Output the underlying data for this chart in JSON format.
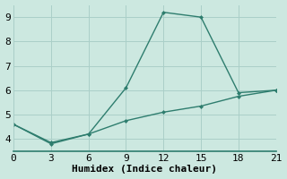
{
  "line1_x": [
    0,
    3,
    6,
    9,
    12,
    15,
    18,
    21
  ],
  "line1_y": [
    4.6,
    3.8,
    4.2,
    6.1,
    9.2,
    9.0,
    5.9,
    6.0
  ],
  "line2_x": [
    0,
    3,
    6,
    9,
    12,
    15,
    18,
    21
  ],
  "line2_y": [
    4.6,
    3.85,
    4.2,
    4.75,
    5.1,
    5.35,
    5.75,
    6.0
  ],
  "line_color": "#2e7d6e",
  "marker": "D",
  "marker_size": 2.5,
  "xlabel": "Humidex (Indice chaleur)",
  "xlim": [
    0,
    21
  ],
  "ylim": [
    3.5,
    9.5
  ],
  "xticks": [
    0,
    3,
    6,
    9,
    12,
    15,
    18,
    21
  ],
  "yticks": [
    4,
    5,
    6,
    7,
    8,
    9
  ],
  "bg_color": "#cce8e0",
  "grid_color": "#aacfc8",
  "font_size": 8,
  "xlabel_fontsize": 8,
  "linewidth": 1.0
}
